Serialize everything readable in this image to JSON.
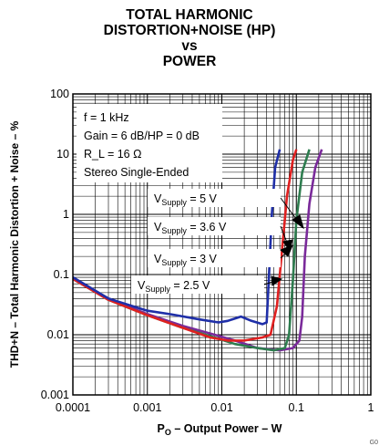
{
  "chart_data": {
    "type": "line",
    "title_lines": [
      "TOTAL HARMONIC",
      "DISTORTION+NOISE (HP)",
      "vs",
      "POWER"
    ],
    "xlabel_main": "P",
    "xlabel_sub": "O",
    "xlabel_rest": " – Output Power – W",
    "ylabel": "THD+N – Total Harmonic Distortion + Noise – %",
    "xscale": "log",
    "yscale": "log",
    "xlim": [
      0.0001,
      1
    ],
    "ylim": [
      0.001,
      100
    ],
    "xticks": [
      "0.0001",
      "0.001",
      "0.01",
      "0.1",
      "1"
    ],
    "yticks": [
      "100",
      "10",
      "1",
      "0.1",
      "0.01",
      "0.001"
    ],
    "grid": true,
    "conditions": [
      "f = 1 kHz",
      "Gain = 6 dB/HP = 0 dB",
      "R_L = 16 Ω",
      "Stereo Single-Ended"
    ],
    "series": [
      {
        "label_main": "V",
        "label_sub": "Supply",
        "label_rest": " = 5 V",
        "color": "#7a2a9a",
        "points": [
          [
            0.0001,
            0.085
          ],
          [
            0.0003,
            0.04
          ],
          [
            0.001,
            0.022
          ],
          [
            0.003,
            0.014
          ],
          [
            0.008,
            0.01
          ],
          [
            0.015,
            0.008
          ],
          [
            0.03,
            0.006
          ],
          [
            0.06,
            0.0055
          ],
          [
            0.09,
            0.006
          ],
          [
            0.11,
            0.008
          ],
          [
            0.12,
            0.02
          ],
          [
            0.13,
            0.2
          ],
          [
            0.15,
            1.5
          ],
          [
            0.18,
            6
          ],
          [
            0.22,
            12
          ]
        ]
      },
      {
        "label_main": "V",
        "label_sub": "Supply",
        "label_rest": " = 3.6 V",
        "color": "#2e7d4f",
        "points": [
          [
            0.0001,
            0.085
          ],
          [
            0.0003,
            0.038
          ],
          [
            0.001,
            0.021
          ],
          [
            0.003,
            0.013
          ],
          [
            0.008,
            0.009
          ],
          [
            0.015,
            0.007
          ],
          [
            0.03,
            0.006
          ],
          [
            0.05,
            0.0055
          ],
          [
            0.07,
            0.006
          ],
          [
            0.08,
            0.01
          ],
          [
            0.09,
            0.08
          ],
          [
            0.1,
            0.8
          ],
          [
            0.12,
            5
          ],
          [
            0.15,
            12
          ]
        ]
      },
      {
        "label_main": "V",
        "label_sub": "Supply",
        "label_rest": " = 3 V",
        "color": "#e02020",
        "points": [
          [
            0.0001,
            0.085
          ],
          [
            0.0003,
            0.038
          ],
          [
            0.001,
            0.021
          ],
          [
            0.003,
            0.013
          ],
          [
            0.007,
            0.009
          ],
          [
            0.012,
            0.008
          ],
          [
            0.02,
            0.008
          ],
          [
            0.035,
            0.009
          ],
          [
            0.045,
            0.01
          ],
          [
            0.055,
            0.03
          ],
          [
            0.065,
            0.3
          ],
          [
            0.075,
            2
          ],
          [
            0.09,
            8
          ],
          [
            0.1,
            12
          ]
        ]
      },
      {
        "label_main": "V",
        "label_sub": "Supply",
        "label_rest": " = 2.5 V",
        "color": "#1f2fa8",
        "points": [
          [
            0.0001,
            0.09
          ],
          [
            0.0003,
            0.04
          ],
          [
            0.001,
            0.025
          ],
          [
            0.002,
            0.022
          ],
          [
            0.005,
            0.018
          ],
          [
            0.009,
            0.016
          ],
          [
            0.012,
            0.017
          ],
          [
            0.018,
            0.02
          ],
          [
            0.025,
            0.017
          ],
          [
            0.035,
            0.015
          ],
          [
            0.04,
            0.016
          ],
          [
            0.043,
            0.1
          ],
          [
            0.047,
            1
          ],
          [
            0.052,
            6
          ],
          [
            0.06,
            12
          ]
        ]
      }
    ]
  },
  "footer_code": "G0"
}
